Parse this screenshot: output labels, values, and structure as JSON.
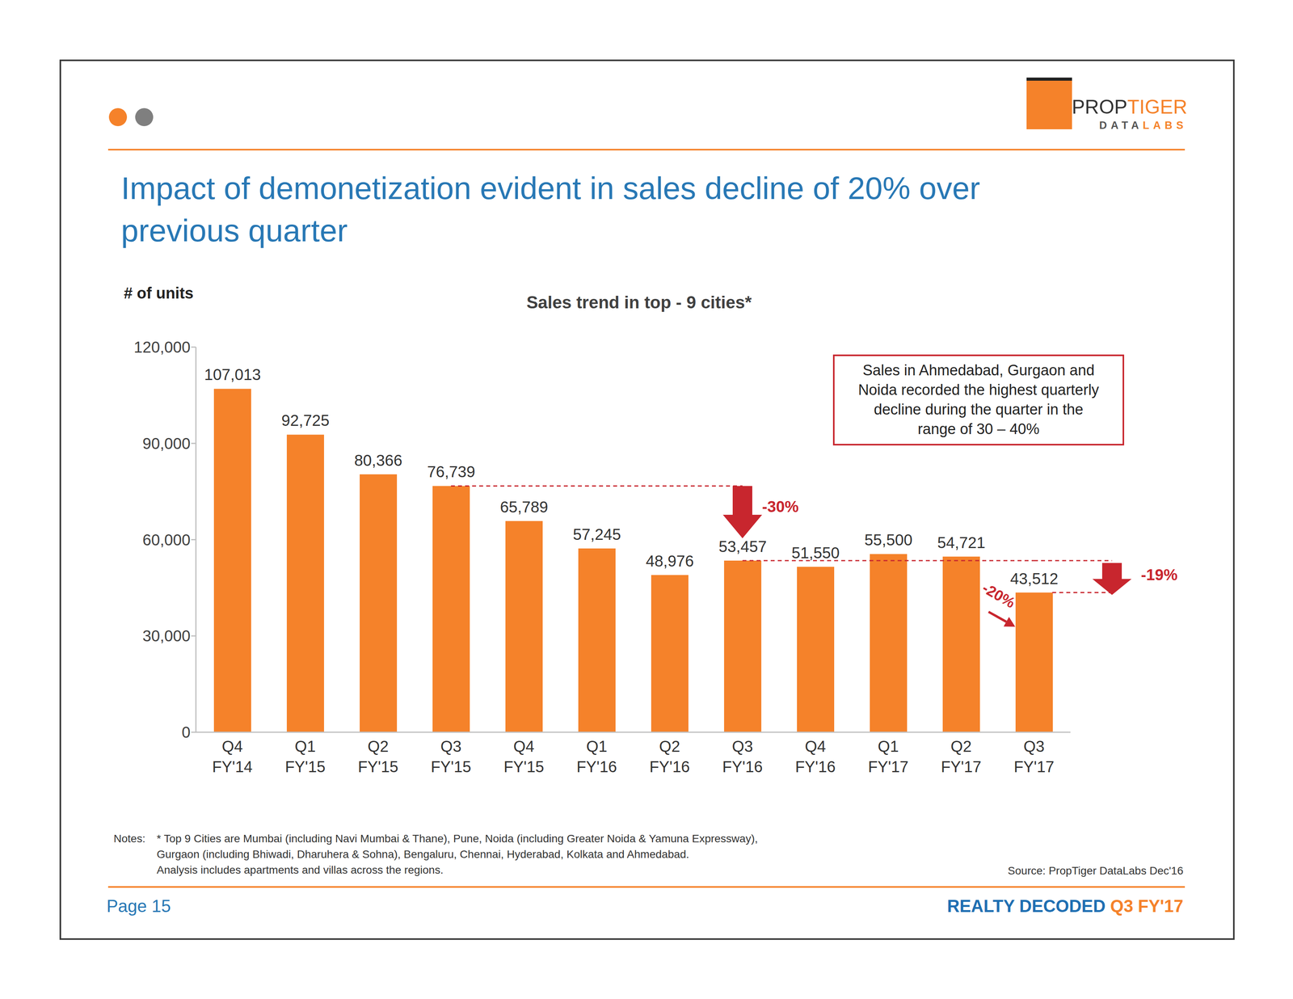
{
  "header": {
    "logo": {
      "name_parts": [
        "PROP",
        "TIGER"
      ],
      "sub_parts": [
        "DATA",
        "LABS"
      ]
    },
    "title": [
      "Impact of demonetization evident in sales decline of 20% over",
      "previous quarter"
    ]
  },
  "chart_data": {
    "type": "bar",
    "title": "Sales trend in top - 9 cities*",
    "y_label": "# of units",
    "categories": [
      "Q4 FY'14",
      "Q1 FY'15",
      "Q2 FY'15",
      "Q3 FY'15",
      "Q4 FY'15",
      "Q1 FY'16",
      "Q2 FY'16",
      "Q3 FY'16",
      "Q4 FY'16",
      "Q1 FY'17",
      "Q2 FY'17",
      "Q3 FY'17"
    ],
    "values": [
      107013,
      92725,
      80366,
      76739,
      65789,
      57245,
      48976,
      53457,
      51550,
      55500,
      54721,
      43512
    ],
    "value_labels": [
      "107,013",
      "92,725",
      "80,366",
      "76,739",
      "65,789",
      "57,245",
      "48,976",
      "53,457",
      "51,550",
      "55,500",
      "54,721",
      "43,512"
    ],
    "color": "#F5822A",
    "ylim": [
      0,
      120000
    ],
    "yticks": [
      0,
      {
        "value": 30000,
        "label": "30,000"
      },
      {
        "value": 60000,
        "label": "60,000"
      },
      {
        "value": 90000,
        "label": "90,000"
      },
      {
        "value": 120000,
        "label": "120,000"
      }
    ],
    "grid": false,
    "data_labels": true,
    "annotations": [
      {
        "text": "-30%",
        "from": "Q3 FY'15",
        "to": "Q3 FY'16"
      },
      {
        "text": "-20%",
        "from": "Q2 FY'17",
        "to": "Q3 FY'17"
      },
      {
        "text": "-19%",
        "from": "Q3 FY'16",
        "to": "Q3 FY'17"
      }
    ],
    "note_box": [
      "Sales in Ahmedabad, Gurgaon and",
      "Noida recorded the highest quarterly",
      "decline during the quarter in the",
      "range of 30 – 40%"
    ]
  },
  "footer": {
    "notes_label": "Notes:",
    "notes": [
      "* Top 9 Cities are Mumbai (including Navi Mumbai & Thane), Pune, Noida (including Greater Noida & Yamuna Expressway),",
      "Gurgaon (including Bhiwadi, Dharuhera & Sohna), Bengaluru, Chennai, Hyderabad, Kolkata and Ahmedabad.",
      "Analysis includes apartments and villas across the regions."
    ],
    "source": "Source: PropTiger DataLabs Dec'16",
    "page": "Page 15",
    "report": [
      "REALTY DECODED",
      "Q3 FY'17"
    ]
  }
}
